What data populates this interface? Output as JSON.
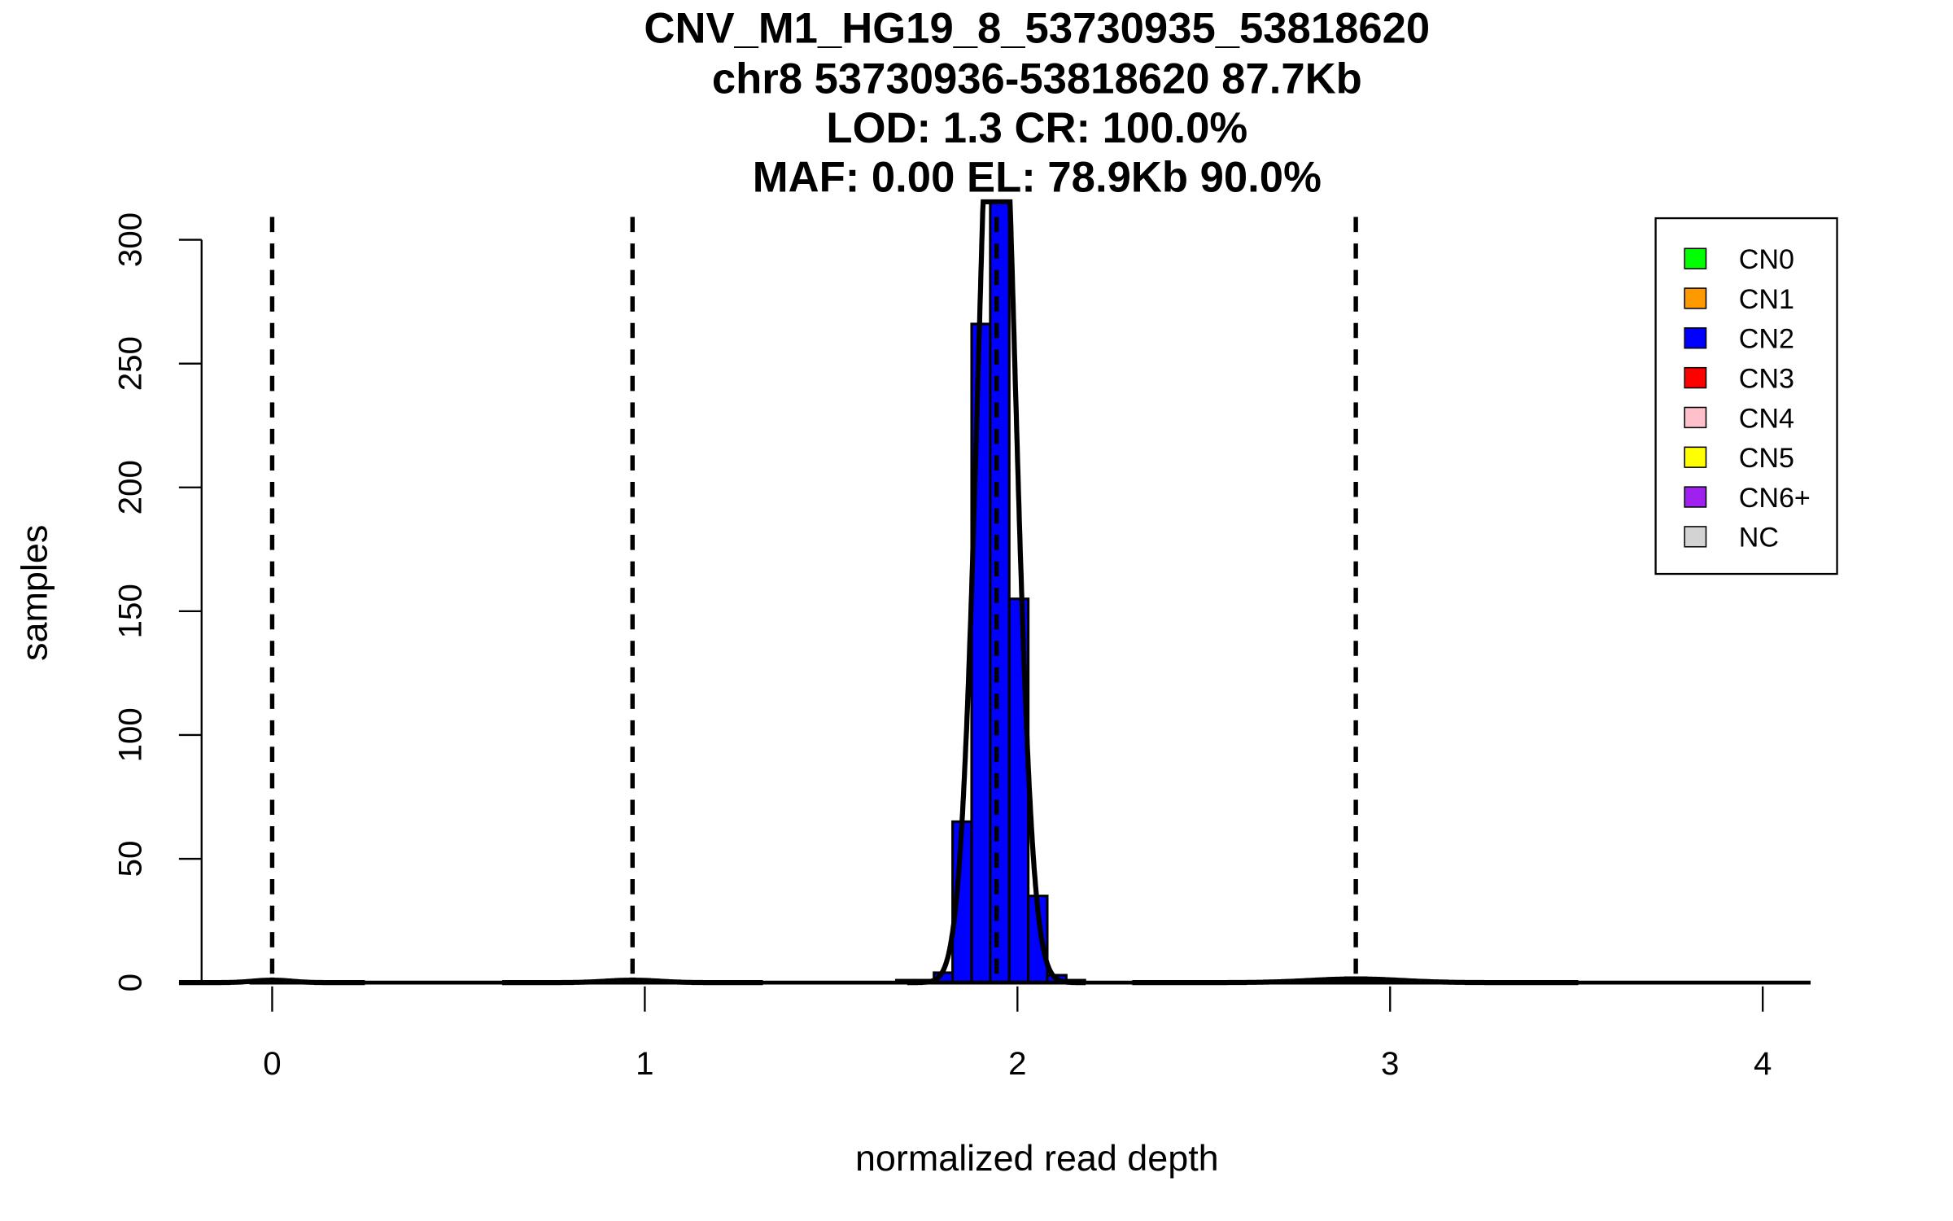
{
  "chart_data": {
    "type": "bar",
    "title_lines": [
      "CNV_M1_HG19_8_53730935_53818620",
      "chr8 53730936-53818620 87.7Kb",
      "LOD: 1.3 CR: 100.0%",
      "MAF: 0.00 EL: 78.9Kb 90.0%"
    ],
    "xlabel": "normalized read depth",
    "ylabel": "samples",
    "xlim": [
      -0.05,
      4.12
    ],
    "ylim": [
      0,
      315
    ],
    "xticks": [
      "0",
      "1",
      "2",
      "3",
      "4"
    ],
    "yticks": [
      "0",
      "50",
      "100",
      "150",
      "200",
      "250",
      "300"
    ],
    "histogram": {
      "bin_width": 0.051,
      "bin_starts": [
        1.675,
        1.725,
        1.776,
        1.826,
        1.877,
        1.927,
        1.978,
        2.029,
        2.08,
        2.13
      ],
      "counts": [
        1,
        1,
        4,
        65,
        266,
        330,
        155,
        35,
        3,
        1
      ],
      "color": "#0000ff"
    },
    "dashed_lines": [
      0.0,
      0.967,
      1.944,
      2.908
    ],
    "fit_curves": [
      {
        "mean": 0.0,
        "sd": 0.05,
        "peak": 1
      },
      {
        "mean": 0.967,
        "sd": 0.07,
        "peak": 1
      },
      {
        "mean": 1.944,
        "sd": 0.048,
        "peak": 420
      },
      {
        "mean": 2.908,
        "sd": 0.12,
        "peak": 1.5
      }
    ],
    "legend": {
      "position": "top-right",
      "entries": [
        {
          "label": "CN0",
          "color": "#00ff00"
        },
        {
          "label": "CN1",
          "color": "#ff9900"
        },
        {
          "label": "CN2",
          "color": "#0000ff"
        },
        {
          "label": "CN3",
          "color": "#ff0000"
        },
        {
          "label": "CN4",
          "color": "#ffc0cb"
        },
        {
          "label": "CN5",
          "color": "#ffff00"
        },
        {
          "label": "CN6+",
          "color": "#a020f0"
        },
        {
          "label": "NC",
          "color": "#d3d3d3"
        }
      ]
    }
  }
}
